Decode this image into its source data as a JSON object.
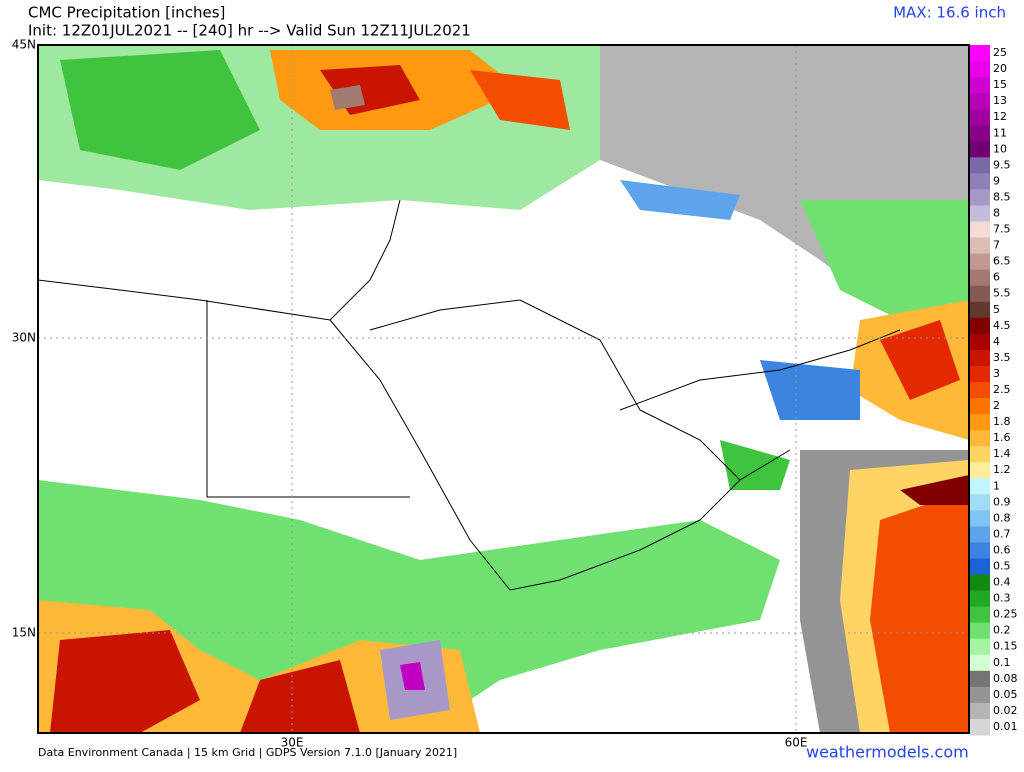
{
  "header": {
    "title": "CMC Precipitation [inches]",
    "subtitle": "Init: 12Z01JUL2021 -- [240] hr --> Valid Sun 12Z11JUL2021",
    "max": "MAX: 16.6 inch"
  },
  "axes": {
    "lat": [
      "45N",
      "30N",
      "15N"
    ],
    "lon": [
      "30E",
      "60E"
    ]
  },
  "legend": [
    {
      "label": "25",
      "color": "#ff00ff"
    },
    {
      "label": "20",
      "color": "#e800e8"
    },
    {
      "label": "15",
      "color": "#d000d0"
    },
    {
      "label": "13",
      "color": "#b800b8"
    },
    {
      "label": "12",
      "color": "#a000a0"
    },
    {
      "label": "11",
      "color": "#880088"
    },
    {
      "label": "10",
      "color": "#700070"
    },
    {
      "label": "9.5",
      "color": "#7a68a8"
    },
    {
      "label": "9",
      "color": "#9080b8"
    },
    {
      "label": "8.5",
      "color": "#a898c8"
    },
    {
      "label": "8",
      "color": "#c4bcdc"
    },
    {
      "label": "7.5",
      "color": "#f2dcd4"
    },
    {
      "label": "7",
      "color": "#dcbcb4"
    },
    {
      "label": "6.5",
      "color": "#c09a92"
    },
    {
      "label": "6",
      "color": "#a27a72"
    },
    {
      "label": "5.5",
      "color": "#845a52"
    },
    {
      "label": "5",
      "color": "#603830"
    },
    {
      "label": "4.5",
      "color": "#800000"
    },
    {
      "label": "4",
      "color": "#a80000"
    },
    {
      "label": "3.5",
      "color": "#c81400"
    },
    {
      "label": "3",
      "color": "#e42800"
    },
    {
      "label": "2.5",
      "color": "#f44c00"
    },
    {
      "label": "2",
      "color": "#ff7400"
    },
    {
      "label": "1.8",
      "color": "#ff9a10"
    },
    {
      "label": "1.6",
      "color": "#ffb838"
    },
    {
      "label": "1.4",
      "color": "#ffd464"
    },
    {
      "label": "1.2",
      "color": "#ffec9c"
    },
    {
      "label": "1",
      "color": "#c4f4ff"
    },
    {
      "label": "0.9",
      "color": "#a0dcf8"
    },
    {
      "label": "0.8",
      "color": "#80c2f0"
    },
    {
      "label": "0.7",
      "color": "#5ea4ea"
    },
    {
      "label": "0.6",
      "color": "#3c84e0"
    },
    {
      "label": "0.5",
      "color": "#1c62d4"
    },
    {
      "label": "0.4",
      "color": "#108a10"
    },
    {
      "label": "0.3",
      "color": "#22a822"
    },
    {
      "label": "0.25",
      "color": "#40c440"
    },
    {
      "label": "0.2",
      "color": "#70e070"
    },
    {
      "label": "0.15",
      "color": "#a4f4a4"
    },
    {
      "label": "0.1",
      "color": "#d4ffd4"
    },
    {
      "label": "0.08",
      "color": "#747474"
    },
    {
      "label": "0.05",
      "color": "#949494"
    },
    {
      "label": "0.02",
      "color": "#b4b4b4"
    },
    {
      "label": "0.01",
      "color": "#d6d6d6"
    }
  ],
  "footer": {
    "credit": "Data Environment Canada | 15 km Grid | GDPS Version 7.1.0 [January 2021]",
    "site": "weathermodels.com"
  }
}
